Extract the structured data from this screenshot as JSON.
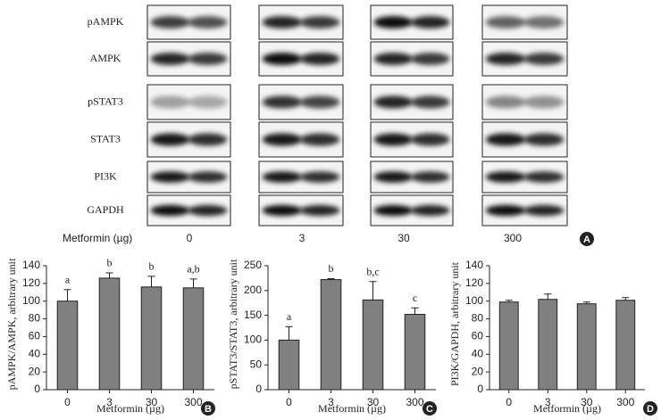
{
  "blot": {
    "rows": [
      "pAMPK",
      "AMPK",
      "pSTAT3",
      "STAT3",
      "PI3K",
      "GAPDH"
    ],
    "x_label": "Metformin (µg)",
    "doses": [
      "0",
      "3",
      "30",
      "300"
    ],
    "panel": "A"
  },
  "chart_data": [
    {
      "type": "bar",
      "panel": "B",
      "ylabel": "pAMPK/AMPK, arbitrary unit",
      "xlabel": "Metformin (µg)",
      "categories": [
        "0",
        "3",
        "30",
        "300"
      ],
      "values": [
        100,
        126,
        116,
        115
      ],
      "errors": [
        13,
        6,
        12,
        10
      ],
      "annotations": [
        "a",
        "b",
        "b",
        "a,b"
      ],
      "color": "#808080",
      "ylim": [
        0,
        140
      ],
      "yticks": [
        0,
        20,
        40,
        60,
        80,
        100,
        120,
        140
      ]
    },
    {
      "type": "bar",
      "panel": "C",
      "ylabel": "pSTAT3/STAT3, arbitrary unit",
      "xlabel": "Metformin (µg)",
      "categories": [
        "0",
        "3",
        "30",
        "300"
      ],
      "values": [
        100,
        222,
        181,
        152
      ],
      "errors": [
        27,
        2,
        37,
        13
      ],
      "annotations": [
        "a",
        "b",
        "b,c",
        "c"
      ],
      "color": "#808080",
      "ylim": [
        0,
        250
      ],
      "yticks": [
        0,
        50,
        100,
        150,
        200,
        250
      ]
    },
    {
      "type": "bar",
      "panel": "D",
      "ylabel": "PI3K/GAPDH, arbitrary unit",
      "xlabel": "Metformin (µg)",
      "categories": [
        "0",
        "3",
        "30",
        "300"
      ],
      "values": [
        99,
        102,
        97,
        101
      ],
      "errors": [
        2,
        6,
        2,
        3
      ],
      "color": "#808080",
      "ylim": [
        0,
        140
      ],
      "yticks": [
        0,
        20,
        40,
        60,
        80,
        100,
        120,
        140
      ]
    }
  ]
}
